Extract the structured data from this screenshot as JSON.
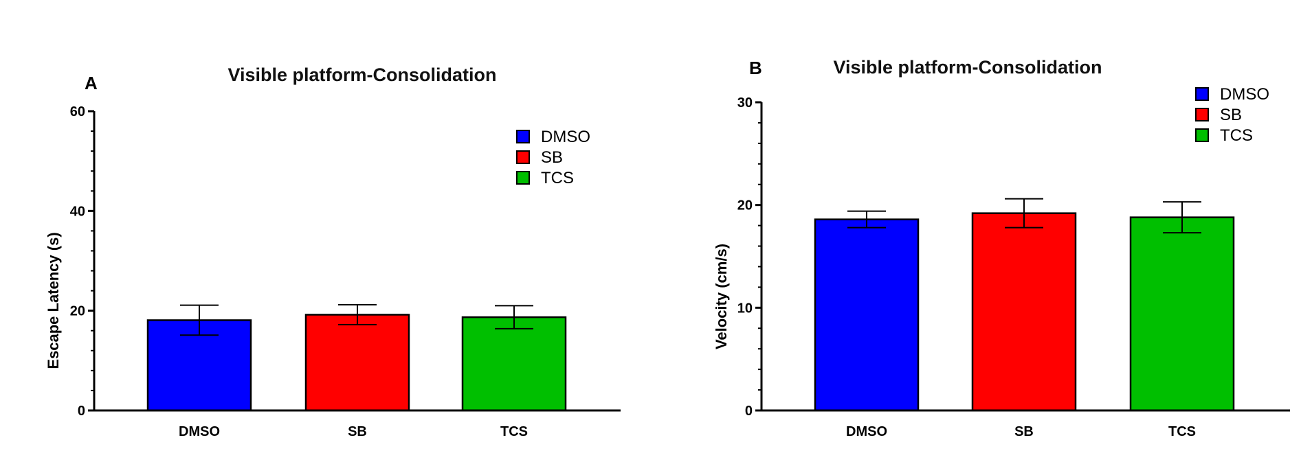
{
  "chart_data": [
    {
      "type": "bar",
      "panel": "A",
      "title": "Visible platform-Consolidation",
      "xlabel": "",
      "ylabel": "Escape Latency (s)",
      "categories": [
        "DMSO",
        "SB",
        "TCS"
      ],
      "values": [
        18.1,
        19.2,
        18.7
      ],
      "errors": [
        3.0,
        2.0,
        2.3
      ],
      "colors": [
        "#0000ff",
        "#ff0000",
        "#00bf00"
      ],
      "ylim": [
        0,
        60
      ],
      "yticks": [
        0,
        20,
        40,
        60
      ],
      "legend": [
        "DMSO",
        "SB",
        "TCS"
      ],
      "legend_position": "top-right",
      "grid": false
    },
    {
      "type": "bar",
      "panel": "B",
      "title": "Visible platform-Consolidation",
      "xlabel": "",
      "ylabel": "Velocity (cm/s)",
      "categories": [
        "DMSO",
        "SB",
        "TCS"
      ],
      "values": [
        18.6,
        19.2,
        18.8
      ],
      "errors": [
        0.8,
        1.4,
        1.5
      ],
      "colors": [
        "#0000ff",
        "#ff0000",
        "#00bf00"
      ],
      "ylim": [
        0,
        30
      ],
      "yticks": [
        0,
        10,
        20,
        30
      ],
      "legend": [
        "DMSO",
        "SB",
        "TCS"
      ],
      "legend_position": "top-right",
      "grid": false
    }
  ]
}
